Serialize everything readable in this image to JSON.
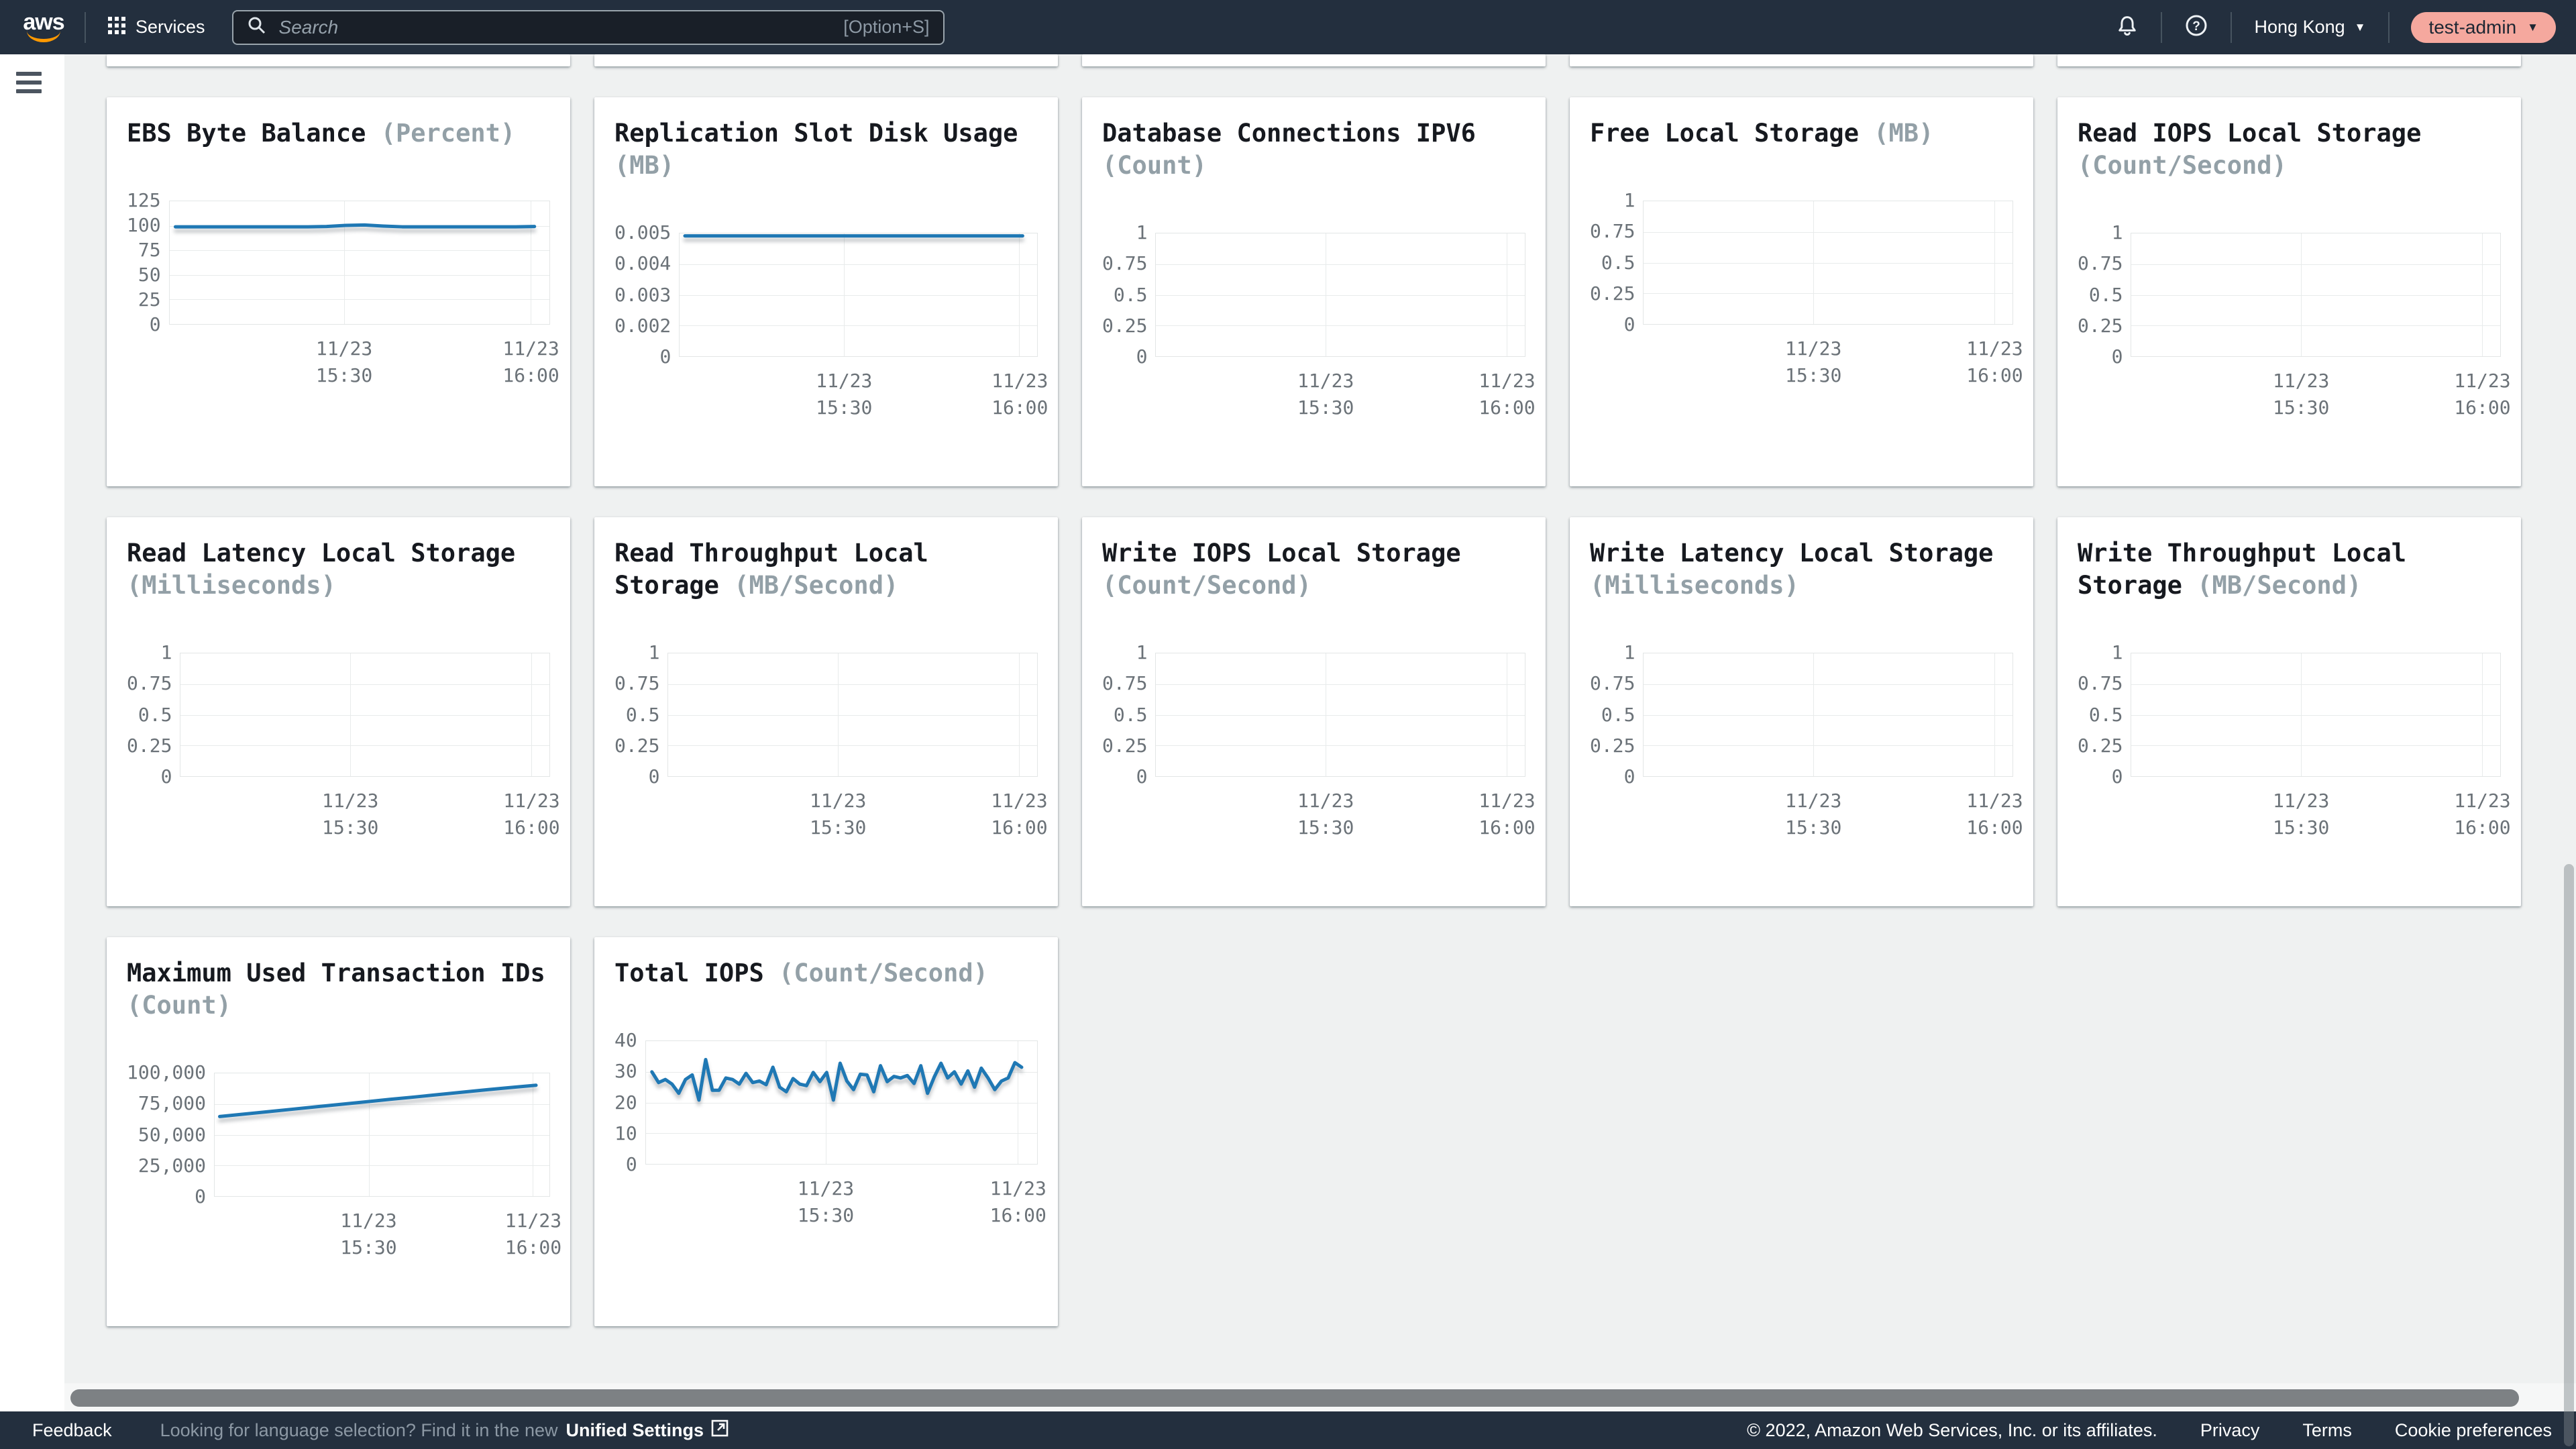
{
  "nav": {
    "logo_text": "aws",
    "services_label": "Services",
    "search": {
      "placeholder": "Search",
      "shortcut_hint": "[Option+S]"
    },
    "region": "Hong Kong",
    "region_caret": "▼",
    "profile": "test-admin",
    "profile_caret": "▼"
  },
  "colors": {
    "nav_bg": "#232f3e",
    "page_bg": "#eff1f1",
    "line_blue": "#1f78b4",
    "profile_pill_bg": "#f5a89e",
    "title_dark": "#16191f",
    "unit_gray": "#93a0a7",
    "tick_gray": "#6b7278"
  },
  "chart_data": [
    {
      "type": "line",
      "title": "EBS Byte Balance",
      "unit": "(Percent)",
      "y_ticks": [
        "125",
        "100",
        "75",
        "50",
        "25",
        "0"
      ],
      "ylim": [
        0,
        125
      ],
      "x_tick_lines": [
        [
          "11/23",
          "15:30"
        ],
        [
          "11/23",
          "16:00"
        ]
      ],
      "values": [
        99,
        99,
        99,
        99,
        99,
        99,
        99,
        99,
        99.3,
        100.4,
        100.8,
        99.7,
        99,
        99,
        99,
        99,
        99,
        99,
        99,
        99.3
      ]
    },
    {
      "type": "line",
      "title": "Replication Slot Disk Usage",
      "unit": "(MB)",
      "y_ticks": [
        "0.005",
        "0.004",
        "0.003",
        "0.002",
        "0"
      ],
      "ylim": [
        0,
        0.005
      ],
      "x_tick_lines": [
        [
          "11/23",
          "15:30"
        ],
        [
          "11/23",
          "16:00"
        ]
      ],
      "values": [
        0.0049,
        0.0049,
        0.0049,
        0.0049,
        0.0049,
        0.0049,
        0.0049,
        0.0049,
        0.0049,
        0.0049,
        0.0049,
        0.0049,
        0.0049,
        0.0049,
        0.0049,
        0.0049,
        0.0049,
        0.0049,
        0.0049,
        0.0049,
        0.0049,
        0.0049,
        0.0049,
        0.0049
      ]
    },
    {
      "type": "line",
      "title": "Database Connections IPV6",
      "unit": "(Count)",
      "y_ticks": [
        "1",
        "0.75",
        "0.5",
        "0.25",
        "0"
      ],
      "ylim": [
        0,
        1
      ],
      "x_tick_lines": [
        [
          "11/23",
          "15:30"
        ],
        [
          "11/23",
          "16:00"
        ]
      ],
      "values": []
    },
    {
      "type": "line",
      "title": "Free Local Storage",
      "unit": "(MB)",
      "y_ticks": [
        "1",
        "0.75",
        "0.5",
        "0.25",
        "0"
      ],
      "ylim": [
        0,
        1
      ],
      "x_tick_lines": [
        [
          "11/23",
          "15:30"
        ],
        [
          "11/23",
          "16:00"
        ]
      ],
      "values": []
    },
    {
      "type": "line",
      "title": "Read IOPS Local Storage",
      "unit": "(Count/Second)",
      "y_ticks": [
        "1",
        "0.75",
        "0.5",
        "0.25",
        "0"
      ],
      "ylim": [
        0,
        1
      ],
      "x_tick_lines": [
        [
          "11/23",
          "15:30"
        ],
        [
          "11/23",
          "16:00"
        ]
      ],
      "values": []
    },
    {
      "type": "line",
      "title": "Read Latency Local Storage",
      "unit": "(Milliseconds)",
      "y_ticks": [
        "1",
        "0.75",
        "0.5",
        "0.25",
        "0"
      ],
      "ylim": [
        0,
        1
      ],
      "x_tick_lines": [
        [
          "11/23",
          "15:30"
        ],
        [
          "11/23",
          "16:00"
        ]
      ],
      "values": []
    },
    {
      "type": "line",
      "title": "Read Throughput Local Storage",
      "unit": "(MB/Second)",
      "y_ticks": [
        "1",
        "0.75",
        "0.5",
        "0.25",
        "0"
      ],
      "ylim": [
        0,
        1
      ],
      "x_tick_lines": [
        [
          "11/23",
          "15:30"
        ],
        [
          "11/23",
          "16:00"
        ]
      ],
      "values": []
    },
    {
      "type": "line",
      "title": "Write IOPS Local Storage",
      "unit": "(Count/Second)",
      "y_ticks": [
        "1",
        "0.75",
        "0.5",
        "0.25",
        "0"
      ],
      "ylim": [
        0,
        1
      ],
      "x_tick_lines": [
        [
          "11/23",
          "15:30"
        ],
        [
          "11/23",
          "16:00"
        ]
      ],
      "values": []
    },
    {
      "type": "line",
      "title": "Write Latency Local Storage",
      "unit": "(Milliseconds)",
      "y_ticks": [
        "1",
        "0.75",
        "0.5",
        "0.25",
        "0"
      ],
      "ylim": [
        0,
        1
      ],
      "x_tick_lines": [
        [
          "11/23",
          "15:30"
        ],
        [
          "11/23",
          "16:00"
        ]
      ],
      "values": []
    },
    {
      "type": "line",
      "title": "Write Throughput Local Storage",
      "unit": "(MB/Second)",
      "y_ticks": [
        "1",
        "0.75",
        "0.5",
        "0.25",
        "0"
      ],
      "ylim": [
        0,
        1
      ],
      "x_tick_lines": [
        [
          "11/23",
          "15:30"
        ],
        [
          "11/23",
          "16:00"
        ]
      ],
      "values": []
    },
    {
      "type": "line",
      "title": "Maximum Used Transaction IDs",
      "unit": "(Count)",
      "y_ticks": [
        "100,000",
        "75,000",
        "50,000",
        "25,000",
        "0"
      ],
      "ylim": [
        0,
        100000
      ],
      "x_tick_lines": [
        [
          "11/23",
          "15:30"
        ],
        [
          "11/23",
          "16:00"
        ]
      ],
      "values": [
        64800,
        66800,
        68800,
        70800,
        72800,
        74800,
        76800,
        78800,
        80700,
        82700,
        84700,
        86700,
        88500,
        90300
      ]
    },
    {
      "type": "line",
      "title": "Total IOPS",
      "unit": "(Count/Second)",
      "y_ticks": [
        "40",
        "30",
        "20",
        "10",
        "0"
      ],
      "ylim": [
        0,
        40
      ],
      "x_tick_lines": [
        [
          "11/23",
          "15:30"
        ],
        [
          "11/23",
          "16:00"
        ]
      ],
      "values": [
        30,
        26.5,
        27.5,
        26,
        23,
        27.5,
        29,
        20.8,
        34,
        24,
        24,
        28,
        27.5,
        26,
        29.5,
        26.5,
        27,
        25.8,
        31.5,
        25,
        23.5,
        27.8,
        26,
        25.5,
        29.8,
        26.8,
        29.8,
        20.8,
        32.8,
        27,
        24.2,
        29.2,
        29,
        23.5,
        32,
        26.8,
        28.5,
        28,
        28.8,
        26.2,
        32,
        23,
        28.3,
        32.8,
        28,
        30,
        26,
        30.3,
        25,
        31.2,
        28,
        24.2,
        27,
        28,
        33,
        31.5
      ]
    }
  ],
  "footer": {
    "feedback": "Feedback",
    "language_hint": "Looking for language selection? Find it in the new",
    "unified_settings": "Unified Settings",
    "copyright": "© 2022, Amazon Web Services, Inc. or its affiliates.",
    "links": [
      "Privacy",
      "Terms",
      "Cookie preferences"
    ]
  }
}
